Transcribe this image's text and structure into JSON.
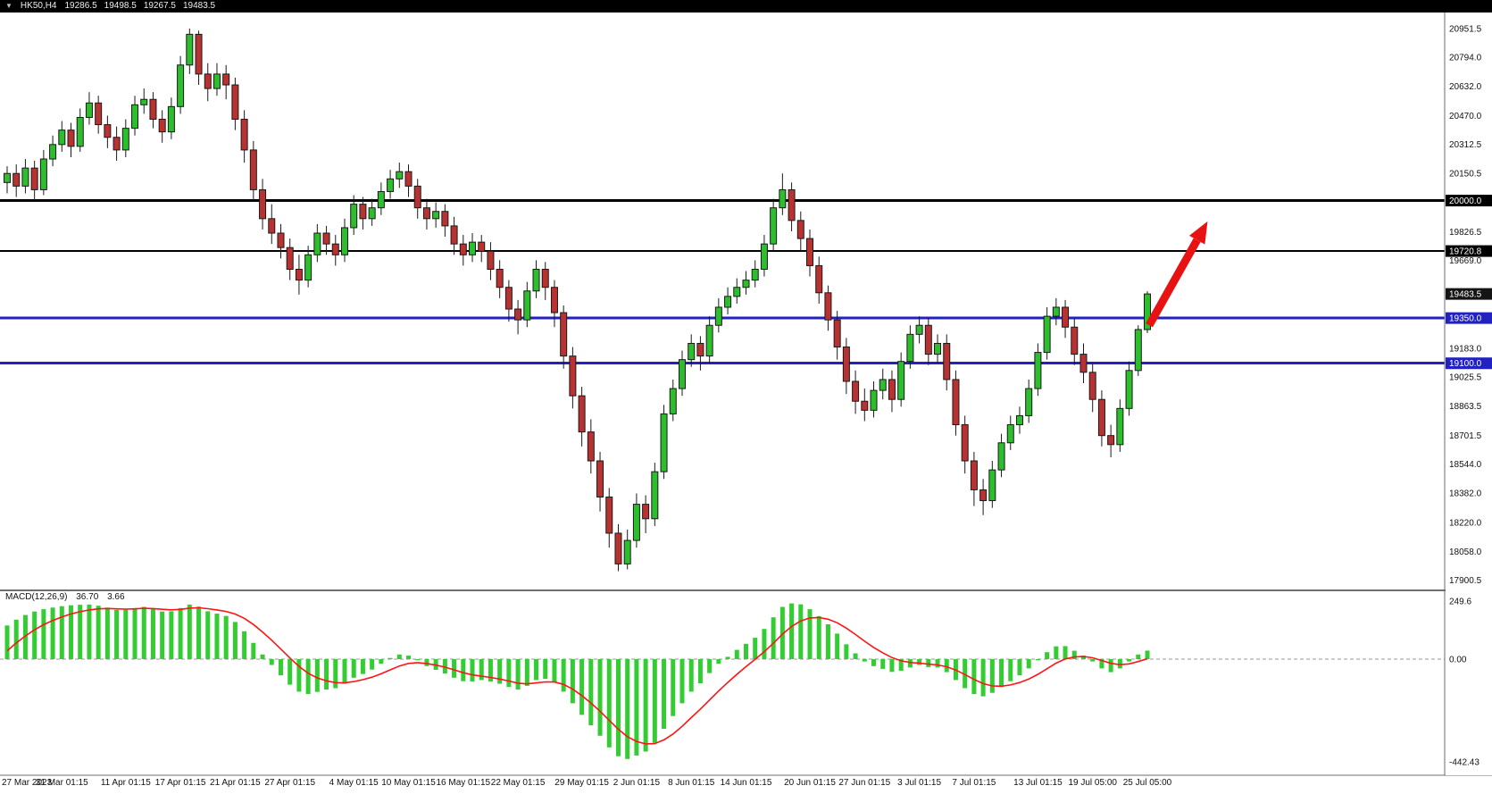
{
  "header": {
    "symbol": "HK50,H4",
    "open": "19286.5",
    "high": "19498.5",
    "low": "19267.5",
    "close": "19483.5"
  },
  "icons": {
    "collapse": "▼"
  },
  "colors": {
    "background": "#FFFFFF",
    "panel_border": "#6E6E6E",
    "bull": "#2DBE2D",
    "bear": "#B93232",
    "candle_outline": "#1A1A1A",
    "level_black": "#000000",
    "level_blue": "#2222C2",
    "tag_black_bg": "#000000",
    "tag_blue_bg": "#2222C2",
    "tag_current_bg": "#141414",
    "tag_text": "#FFFFFF",
    "macd_histogram": "#33CC33",
    "macd_signal": "#FF1414",
    "macd_zero": "#9A9A9A",
    "axis_text": "#111111",
    "topbar_bg": "#000000",
    "topbar_text": "#EFEFEF",
    "icon_gray": "#BBBBBB",
    "arrow": "#E81212"
  },
  "price_scale": {
    "ticks": [
      {
        "label": "20951.5",
        "price": 20951.5
      },
      {
        "label": "20794.0",
        "price": 20794.0
      },
      {
        "label": "20632.0",
        "price": 20632.0
      },
      {
        "label": "20470.0",
        "price": 20470.0
      },
      {
        "label": "20312.5",
        "price": 20312.5
      },
      {
        "label": "20150.5",
        "price": 20150.5
      },
      {
        "label": "19826.5",
        "price": 19826.5
      },
      {
        "label": "19669.0",
        "price": 19669.0
      },
      {
        "label": "19183.0",
        "price": 19183.0
      },
      {
        "label": "19025.5",
        "price": 19025.5
      },
      {
        "label": "18863.5",
        "price": 18863.5
      },
      {
        "label": "18701.5",
        "price": 18701.5
      },
      {
        "label": "18544.0",
        "price": 18544.0
      },
      {
        "label": "18382.0",
        "price": 18382.0
      },
      {
        "label": "18220.0",
        "price": 18220.0
      },
      {
        "label": "18058.0",
        "price": 18058.0
      },
      {
        "label": "17900.5",
        "price": 17900.5
      }
    ],
    "tags": [
      {
        "label": "20000.0",
        "price": 20000.0,
        "style": "black",
        "line": true,
        "width": 3
      },
      {
        "label": "19720.8",
        "price": 19720.8,
        "style": "black",
        "line": true,
        "width": 2
      },
      {
        "label": "19483.5",
        "price": 19483.5,
        "style": "current",
        "line": false,
        "width": 0
      },
      {
        "label": "19350.0",
        "price": 19350.0,
        "style": "blue",
        "line": true,
        "width": 3
      },
      {
        "label": "19100.0",
        "price": 19100.0,
        "style": "blue",
        "line": true,
        "width": 3
      }
    ]
  },
  "time_axis": {
    "labels": [
      {
        "text": "27 Mar 2023",
        "candle": 0
      },
      {
        "text": "31 Mar 01:15",
        "candle": 6
      },
      {
        "text": "11 Apr 01:15",
        "candle": 13
      },
      {
        "text": "17 Apr 01:15",
        "candle": 19
      },
      {
        "text": "21 Apr 01:15",
        "candle": 25
      },
      {
        "text": "27 Apr 01:15",
        "candle": 31
      },
      {
        "text": "4 May 01:15",
        "candle": 38
      },
      {
        "text": "10 May 01:15",
        "candle": 44
      },
      {
        "text": "16 May 01:15",
        "candle": 50
      },
      {
        "text": "22 May 01:15",
        "candle": 56
      },
      {
        "text": "29 May 01:15",
        "candle": 63
      },
      {
        "text": "2 Jun 01:15",
        "candle": 69
      },
      {
        "text": "8 Jun 01:15",
        "candle": 75
      },
      {
        "text": "14 Jun 01:15",
        "candle": 81
      },
      {
        "text": "20 Jun 01:15",
        "candle": 88
      },
      {
        "text": "27 Jun 01:15",
        "candle": 94
      },
      {
        "text": "3 Jul 01:15",
        "candle": 100
      },
      {
        "text": "7 Jul 01:15",
        "candle": 106
      },
      {
        "text": "13 Jul 01:15",
        "candle": 113
      },
      {
        "text": "19 Jul 05:00",
        "candle": 119
      },
      {
        "text": "25 Jul 05:00",
        "candle": 125
      }
    ]
  },
  "indicator": {
    "name": "MACD(12,26,9)",
    "value_main": "36.70",
    "value_signal": "3.66",
    "scale_labels": {
      "top": "249.6",
      "zero": "0.00",
      "bottom": "-442.43"
    }
  },
  "annotation": {
    "arrow": {
      "from": {
        "candle": 125.2,
        "price": 19310
      },
      "to": {
        "candle": 131.6,
        "price": 19885
      },
      "color": "#E81212"
    }
  },
  "chart_data": {
    "type": "candlestick",
    "symbol": "HK50",
    "timeframe": "H4",
    "title": "HK50,H4 19286.5 19498.5 19267.5 19483.5",
    "y_axis": {
      "min": 17900.5,
      "max": 20951.5
    },
    "levels": [
      {
        "price": 20000.0,
        "color": "black"
      },
      {
        "price": 19720.8,
        "color": "black"
      },
      {
        "price": 19350.0,
        "color": "blue"
      },
      {
        "price": 19100.0,
        "color": "blue"
      }
    ],
    "candles": [
      [
        20100,
        20190,
        20040,
        20150
      ],
      [
        20150,
        20200,
        20020,
        20080
      ],
      [
        20080,
        20230,
        20040,
        20180
      ],
      [
        20180,
        20220,
        20000,
        20060
      ],
      [
        20060,
        20280,
        20030,
        20230
      ],
      [
        20230,
        20360,
        20190,
        20310
      ],
      [
        20310,
        20440,
        20270,
        20390
      ],
      [
        20390,
        20430,
        20240,
        20300
      ],
      [
        20300,
        20510,
        20270,
        20460
      ],
      [
        20460,
        20600,
        20420,
        20540
      ],
      [
        20540,
        20580,
        20370,
        20420
      ],
      [
        20420,
        20470,
        20290,
        20350
      ],
      [
        20350,
        20410,
        20220,
        20280
      ],
      [
        20280,
        20450,
        20240,
        20400
      ],
      [
        20400,
        20580,
        20360,
        20530
      ],
      [
        20530,
        20620,
        20480,
        20560
      ],
      [
        20560,
        20600,
        20400,
        20450
      ],
      [
        20450,
        20500,
        20320,
        20380
      ],
      [
        20380,
        20570,
        20340,
        20520
      ],
      [
        20520,
        20800,
        20480,
        20750
      ],
      [
        20750,
        20951.5,
        20700,
        20920
      ],
      [
        20920,
        20940,
        20640,
        20700
      ],
      [
        20700,
        20760,
        20550,
        20620
      ],
      [
        20620,
        20760,
        20580,
        20700
      ],
      [
        20700,
        20750,
        20560,
        20640
      ],
      [
        20640,
        20680,
        20390,
        20450
      ],
      [
        20450,
        20500,
        20210,
        20280
      ],
      [
        20280,
        20330,
        20000,
        20060
      ],
      [
        20060,
        20120,
        19840,
        19900
      ],
      [
        19900,
        19980,
        19760,
        19820
      ],
      [
        19820,
        19870,
        19680,
        19740
      ],
      [
        19740,
        19790,
        19560,
        19620
      ],
      [
        19620,
        19700,
        19480,
        19560
      ],
      [
        19560,
        19750,
        19520,
        19700
      ],
      [
        19700,
        19870,
        19660,
        19820
      ],
      [
        19820,
        19860,
        19700,
        19760
      ],
      [
        19760,
        19810,
        19640,
        19700
      ],
      [
        19700,
        19900,
        19660,
        19850
      ],
      [
        19850,
        20030,
        19810,
        19980
      ],
      [
        19980,
        20020,
        19840,
        19900
      ],
      [
        19900,
        20010,
        19860,
        19960
      ],
      [
        19960,
        20100,
        19920,
        20050
      ],
      [
        20050,
        20170,
        20010,
        20120
      ],
      [
        20120,
        20210,
        20070,
        20160
      ],
      [
        20160,
        20200,
        20020,
        20080
      ],
      [
        20080,
        20120,
        19900,
        19960
      ],
      [
        19960,
        20010,
        19840,
        19900
      ],
      [
        19900,
        19990,
        19850,
        19940
      ],
      [
        19940,
        19980,
        19800,
        19860
      ],
      [
        19860,
        19910,
        19700,
        19760
      ],
      [
        19760,
        19810,
        19640,
        19700
      ],
      [
        19700,
        19820,
        19660,
        19770
      ],
      [
        19770,
        19810,
        19660,
        19720
      ],
      [
        19720,
        19770,
        19560,
        19620
      ],
      [
        19620,
        19670,
        19460,
        19520
      ],
      [
        19520,
        19560,
        19330,
        19400
      ],
      [
        19400,
        19450,
        19260,
        19340
      ],
      [
        19340,
        19550,
        19300,
        19500
      ],
      [
        19500,
        19670,
        19460,
        19620
      ],
      [
        19620,
        19660,
        19450,
        19520
      ],
      [
        19520,
        19560,
        19300,
        19380
      ],
      [
        19380,
        19420,
        19070,
        19140
      ],
      [
        19140,
        19190,
        18850,
        18920
      ],
      [
        18920,
        18970,
        18640,
        18720
      ],
      [
        18720,
        18790,
        18490,
        18560
      ],
      [
        18560,
        18610,
        18280,
        18360
      ],
      [
        18360,
        18410,
        18080,
        18160
      ],
      [
        18160,
        18210,
        17950,
        17990
      ],
      [
        17990,
        18180,
        17960,
        18120
      ],
      [
        18120,
        18380,
        18080,
        18320
      ],
      [
        18320,
        18370,
        18160,
        18240
      ],
      [
        18240,
        18550,
        18200,
        18500
      ],
      [
        18500,
        18870,
        18460,
        18820
      ],
      [
        18820,
        19010,
        18780,
        18960
      ],
      [
        18960,
        19170,
        18920,
        19120
      ],
      [
        19120,
        19260,
        19080,
        19210
      ],
      [
        19210,
        19250,
        19060,
        19140
      ],
      [
        19140,
        19360,
        19100,
        19310
      ],
      [
        19310,
        19460,
        19270,
        19410
      ],
      [
        19410,
        19520,
        19370,
        19470
      ],
      [
        19470,
        19570,
        19430,
        19520
      ],
      [
        19520,
        19610,
        19480,
        19560
      ],
      [
        19560,
        19670,
        19520,
        19620
      ],
      [
        19620,
        19810,
        19580,
        19760
      ],
      [
        19760,
        20010,
        19720,
        19960
      ],
      [
        19960,
        20150,
        19920,
        20060
      ],
      [
        20060,
        20100,
        19830,
        19890
      ],
      [
        19890,
        19940,
        19720,
        19790
      ],
      [
        19790,
        19840,
        19580,
        19640
      ],
      [
        19640,
        19690,
        19430,
        19490
      ],
      [
        19490,
        19530,
        19280,
        19340
      ],
      [
        19340,
        19390,
        19120,
        19190
      ],
      [
        19190,
        19240,
        18930,
        19000
      ],
      [
        19000,
        19060,
        18820,
        18890
      ],
      [
        18890,
        18960,
        18780,
        18840
      ],
      [
        18840,
        19000,
        18800,
        18950
      ],
      [
        18950,
        19070,
        18900,
        19010
      ],
      [
        19010,
        19060,
        18830,
        18900
      ],
      [
        18900,
        19160,
        18860,
        19110
      ],
      [
        19110,
        19310,
        19070,
        19260
      ],
      [
        19260,
        19360,
        19210,
        19310
      ],
      [
        19310,
        19350,
        19090,
        19150
      ],
      [
        19150,
        19260,
        19100,
        19210
      ],
      [
        19210,
        19260,
        18950,
        19010
      ],
      [
        19010,
        19060,
        18700,
        18760
      ],
      [
        18760,
        18810,
        18490,
        18560
      ],
      [
        18560,
        18610,
        18310,
        18400
      ],
      [
        18400,
        18460,
        18260,
        18340
      ],
      [
        18340,
        18560,
        18300,
        18510
      ],
      [
        18510,
        18710,
        18470,
        18660
      ],
      [
        18660,
        18810,
        18620,
        18760
      ],
      [
        18760,
        18860,
        18710,
        18810
      ],
      [
        18810,
        19010,
        18770,
        18960
      ],
      [
        18960,
        19210,
        18920,
        19160
      ],
      [
        19160,
        19410,
        19120,
        19360
      ],
      [
        19360,
        19460,
        19310,
        19410
      ],
      [
        19410,
        19450,
        19240,
        19300
      ],
      [
        19300,
        19350,
        19090,
        19150
      ],
      [
        19150,
        19210,
        18990,
        19050
      ],
      [
        19050,
        19100,
        18830,
        18900
      ],
      [
        18900,
        18950,
        18640,
        18700
      ],
      [
        18700,
        18760,
        18580,
        18650
      ],
      [
        18650,
        18900,
        18610,
        18850
      ],
      [
        18850,
        19110,
        18810,
        19060
      ],
      [
        19060,
        19310,
        19030,
        19286.5
      ],
      [
        19286.5,
        19498.5,
        19267.5,
        19483.5
      ]
    ],
    "indicator": {
      "type": "macd",
      "params": [
        12,
        26,
        9
      ],
      "axis": {
        "max": 249.6,
        "min": -442.43
      },
      "histogram": [
        145,
        170,
        190,
        205,
        215,
        222,
        228,
        232,
        234,
        235,
        230,
        222,
        212,
        213,
        220,
        225,
        215,
        205,
        206,
        220,
        235,
        226,
        206,
        196,
        186,
        160,
        120,
        70,
        20,
        -25,
        -70,
        -110,
        -140,
        -150,
        -141,
        -131,
        -125,
        -105,
        -80,
        -64,
        -45,
        -20,
        5,
        20,
        15,
        -5,
        -30,
        -46,
        -62,
        -80,
        -95,
        -96,
        -90,
        -96,
        -106,
        -120,
        -131,
        -115,
        -90,
        -85,
        -100,
        -140,
        -190,
        -240,
        -285,
        -330,
        -380,
        -418,
        -430,
        -415,
        -398,
        -360,
        -300,
        -245,
        -190,
        -140,
        -104,
        -60,
        -20,
        10,
        40,
        66,
        92,
        130,
        180,
        225,
        240,
        236,
        215,
        185,
        150,
        110,
        64,
        25,
        -10,
        -30,
        -42,
        -55,
        -50,
        -36,
        -25,
        -34,
        -36,
        -56,
        -90,
        -125,
        -150,
        -160,
        -145,
        -120,
        -95,
        -70,
        -40,
        -5,
        30,
        55,
        56,
        36,
        15,
        -10,
        -40,
        -56,
        -40,
        -10,
        20,
        36.7
      ]
    }
  }
}
